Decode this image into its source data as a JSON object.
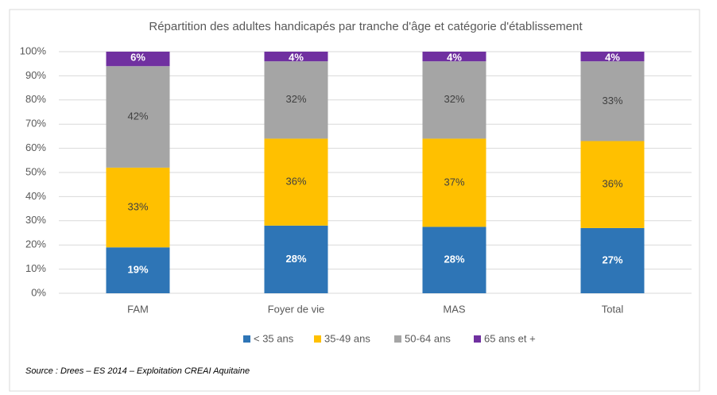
{
  "chart_data": {
    "type": "stacked_bar",
    "title": "Répartition des adultes handicapés par tranche d'âge et catégorie d'établissement",
    "categories": [
      "FAM",
      "Foyer de vie",
      "MAS",
      "Total"
    ],
    "series": [
      {
        "name": "< 35 ans",
        "color": "#2e75b6",
        "values": [
          19,
          28,
          27.5,
          27
        ],
        "value_labels": [
          "19%",
          "28%",
          "28%",
          "27%"
        ]
      },
      {
        "name": "35-49 ans",
        "color": "#ffc000",
        "values": [
          33,
          36,
          36.5,
          36
        ],
        "value_labels": [
          "33%",
          "36%",
          "37%",
          "36%"
        ]
      },
      {
        "name": "50-64 ans",
        "color": "#a5a5a5",
        "values": [
          42,
          32,
          32,
          33
        ],
        "value_labels": [
          "42%",
          "32%",
          "32%",
          "33%"
        ]
      },
      {
        "name": "65 ans et +",
        "color": "#7030a0",
        "values": [
          6,
          4,
          4,
          4
        ],
        "value_labels": [
          "6%",
          "4%",
          "4%",
          "4%"
        ]
      }
    ],
    "ylim": [
      0,
      100
    ],
    "yticks": [
      {
        "value": 0,
        "label": "0%"
      },
      {
        "value": 10,
        "label": "10%"
      },
      {
        "value": 20,
        "label": "20%"
      },
      {
        "value": 30,
        "label": "30%"
      },
      {
        "value": 40,
        "label": "40%"
      },
      {
        "value": 50,
        "label": "50%"
      },
      {
        "value": 60,
        "label": "60%"
      },
      {
        "value": 70,
        "label": "70%"
      },
      {
        "value": 80,
        "label": "80%"
      },
      {
        "value": 90,
        "label": "90%"
      },
      {
        "value": 100,
        "label": "100%"
      }
    ],
    "grid": true,
    "legend": "bottom",
    "source": "Source : Drees – ES 2014 – Exploitation CREAI Aquitaine"
  }
}
